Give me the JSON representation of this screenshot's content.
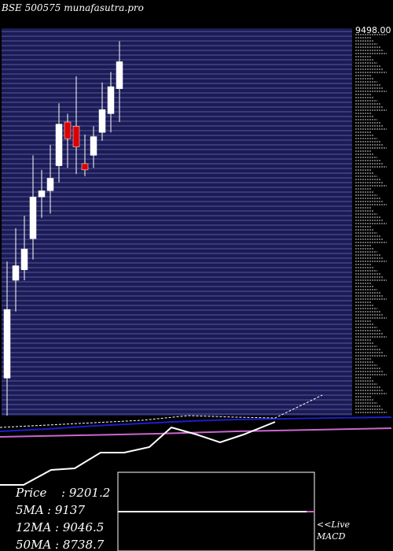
{
  "header": {
    "title": "BSE 500575 munafasutra.pro"
  },
  "colors": {
    "background": "#000000",
    "price_panel": "#1b1b55",
    "gridline": "#5a5aa0",
    "candle_up": "#ffffff",
    "candle_down": "#dd0000",
    "wick": "#ffffff",
    "ma_short": "#ffffff",
    "ma_long": "#1d1dcc",
    "ma_magenta": "#cc66cc",
    "indicator": "#ffffff"
  },
  "chart_data": {
    "type": "candlestick",
    "title": "BSE 500575 munafasutra.pro",
    "axis_top_label": "9498.00",
    "ylim": [
      7700,
      9560
    ],
    "candles": [
      {
        "open": 7880,
        "high": 8440,
        "low": 7700,
        "close": 8210
      },
      {
        "open": 8350,
        "high": 8600,
        "low": 8200,
        "close": 8420
      },
      {
        "open": 8400,
        "high": 8660,
        "low": 8350,
        "close": 8500
      },
      {
        "open": 8550,
        "high": 8950,
        "low": 8450,
        "close": 8750
      },
      {
        "open": 8750,
        "high": 8880,
        "low": 8650,
        "close": 8780
      },
      {
        "open": 8780,
        "high": 9000,
        "low": 8670,
        "close": 8840
      },
      {
        "open": 8900,
        "high": 9200,
        "low": 8820,
        "close": 9100
      },
      {
        "open": 9110,
        "high": 9150,
        "low": 8890,
        "close": 9030
      },
      {
        "open": 9090,
        "high": 9330,
        "low": 8860,
        "close": 8990
      },
      {
        "open": 8910,
        "high": 9050,
        "low": 8850,
        "close": 8880
      },
      {
        "open": 8950,
        "high": 9090,
        "low": 8890,
        "close": 9040
      },
      {
        "open": 9060,
        "high": 9300,
        "low": 9020,
        "close": 9170
      },
      {
        "open": 9150,
        "high": 9350,
        "low": 9060,
        "close": 9280
      },
      {
        "open": 9270,
        "high": 9498,
        "low": 9110,
        "close": 9400
      }
    ],
    "stats": [
      {
        "label": "Price",
        "value": "9201.2"
      },
      {
        "label": "5MA",
        "value": "9137"
      },
      {
        "label": "12MA",
        "value": "9046.5"
      },
      {
        "label": "50MA",
        "value": "8738.7"
      }
    ],
    "indicator_labels": [
      "<<Live",
      "MACD"
    ]
  }
}
